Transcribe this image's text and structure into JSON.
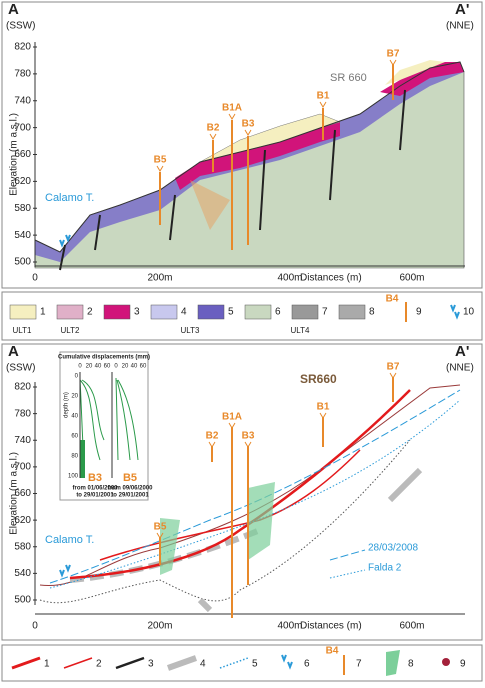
{
  "panel_top": {
    "section_start": "A",
    "section_end": "A'",
    "dir_start": "(SSW)",
    "dir_end": "(NNE)",
    "y_label": "Elevation (m a.s.l.)",
    "x_label": "Distances (m)",
    "yticks": [
      500,
      540,
      580,
      620,
      660,
      700,
      740,
      780,
      820
    ],
    "xticks": [
      "0",
      "200m",
      "400m",
      "600m"
    ],
    "boreholes": [
      "B5",
      "B2",
      "B1A",
      "B3",
      "B1",
      "B7"
    ],
    "site": "SR 660",
    "river": "Calamo T."
  },
  "legend_top": {
    "items": [
      "1",
      "2",
      "3",
      "4",
      "5",
      "6",
      "7",
      "8",
      "9",
      "10"
    ],
    "units": [
      "ULT1",
      "ULT2",
      "ULT3",
      "ULT4"
    ],
    "borehole": "B4"
  },
  "panel_bottom": {
    "section_start": "A",
    "section_end": "A'",
    "dir_start": "(SSW)",
    "dir_end": "(NNE)",
    "y_label": "Elevation (m a.s.l.)",
    "x_label": "Distances (m)",
    "yticks": [
      500,
      540,
      580,
      620,
      660,
      700,
      740,
      780,
      820
    ],
    "xticks": [
      "0",
      "200m",
      "400m",
      "600m"
    ],
    "boreholes": [
      "B5",
      "B2",
      "B1A",
      "B3",
      "B1",
      "B7"
    ],
    "site": "SR660",
    "river": "Calamo T.",
    "lines": [
      "28/03/2008",
      "Falda 2"
    ],
    "inset": {
      "title": "Cumulative displacements (mm)",
      "depth_label": "depth (m)",
      "xticks": [
        0,
        20,
        40,
        60
      ],
      "depth_ticks": [
        0,
        20,
        40,
        60,
        80,
        100
      ],
      "b3": "B3",
      "b3_from": "from 01/06/2000",
      "b3_to": "to 29/01/2001",
      "b5": "B5",
      "b5_from": "from 09/06/2000",
      "b5_to": "to 29/01/2001"
    }
  },
  "legend_bottom": {
    "items": [
      "1",
      "2",
      "3",
      "4",
      "5",
      "6",
      "7",
      "8",
      "9"
    ],
    "borehole": "B4"
  }
}
